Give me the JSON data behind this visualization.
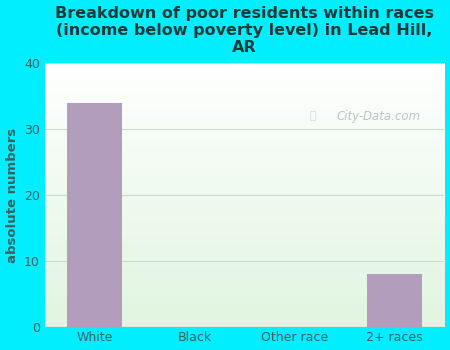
{
  "categories": [
    "White",
    "Black",
    "Other race",
    "2+ races"
  ],
  "values": [
    34,
    0,
    0,
    8
  ],
  "bar_color": "#b39dbd",
  "title": "Breakdown of poor residents within races\n(income below poverty level) in Lead Hill,\nAR",
  "ylabel": "absolute numbers",
  "ylim": [
    0,
    40
  ],
  "yticks": [
    0,
    10,
    20,
    30,
    40
  ],
  "bg_outer": "#00eeff",
  "bg_plot_topleft": "#e8f5e9",
  "bg_plot_bottomright": "#ffffff",
  "title_color": "#1a3a3a",
  "axis_color": "#3a6060",
  "tick_color": "#3a6060",
  "grid_color": "#c8ddc8",
  "watermark_text": "City-Data.com",
  "title_fontsize": 11.5,
  "ylabel_fontsize": 9.5
}
